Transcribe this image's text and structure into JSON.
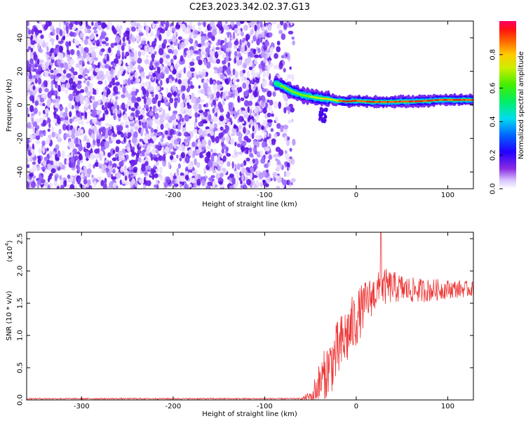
{
  "title": "C2E3.2023.342.02.37.G13",
  "chart_data": [
    {
      "type": "heatmap",
      "name": "spectrogram",
      "xlabel": "Height of straight line (km)",
      "ylabel": "Frequency (Hz)",
      "xlim": [
        -360,
        128
      ],
      "ylim": [
        -50,
        50
      ],
      "xticks": [
        -300,
        -200,
        -100,
        0,
        100
      ],
      "xtick_labels": [
        "-300",
        "-200",
        "-100",
        "0",
        "100"
      ],
      "yticks": [
        -40,
        -20,
        0,
        20,
        40
      ],
      "ytick_labels": [
        "-40",
        "-20",
        "0",
        "20",
        "40"
      ],
      "noise_region_x": [
        -360,
        -78
      ],
      "signal_ridge": {
        "x": [
          -88,
          -80,
          -70,
          -60,
          -50,
          -40,
          -30,
          -20,
          -10,
          0,
          10,
          20,
          30,
          40,
          50,
          60,
          70,
          80,
          90,
          100,
          110,
          120,
          128
        ],
        "freq_hz": [
          13,
          11,
          8,
          6,
          5,
          4,
          3.5,
          2.5,
          2,
          2.5,
          2,
          1.8,
          1.8,
          1.8,
          2,
          2,
          2.2,
          2.5,
          3,
          3,
          3,
          3,
          3
        ]
      },
      "colorbar": {
        "label": "Normalized spectral amplitude",
        "range": [
          0.0,
          1.0
        ],
        "ticks": [
          0.0,
          0.2,
          0.4,
          0.6,
          0.8
        ],
        "tick_labels": [
          "0.0",
          "0.2",
          "0.4",
          "0.6",
          "0.8"
        ]
      }
    },
    {
      "type": "line",
      "name": "snr",
      "xlabel": "Height of straight line (km)",
      "ylabel": "SNR (10 * v/v)",
      "yscale_label": "(x10",
      "yscale_exp": "4",
      "xlim": [
        -360,
        128
      ],
      "ylim": [
        0,
        2.6
      ],
      "xticks": [
        -300,
        -200,
        -100,
        0,
        100
      ],
      "xtick_labels": [
        "-300",
        "-200",
        "-100",
        "0",
        "100"
      ],
      "yticks": [
        0,
        0.5,
        1.0,
        1.5,
        2.0,
        2.5
      ],
      "ytick_labels": [
        "0.0",
        "0.5",
        "1.0",
        "1.5",
        "2.0",
        "2.5"
      ],
      "color": "#ee3333",
      "envelope": {
        "x": [
          -360,
          -60,
          -50,
          -40,
          -30,
          -20,
          -10,
          0,
          10,
          20,
          30,
          40,
          60,
          80,
          100,
          128
        ],
        "mean": [
          0.02,
          0.02,
          0.05,
          0.25,
          0.5,
          0.75,
          1.0,
          1.25,
          1.5,
          1.65,
          1.75,
          1.75,
          1.7,
          1.7,
          1.72,
          1.72
        ],
        "spread": [
          0.01,
          0.01,
          0.1,
          0.35,
          0.45,
          0.5,
          0.5,
          0.45,
          0.35,
          0.3,
          0.3,
          0.25,
          0.2,
          0.18,
          0.15,
          0.12
        ]
      },
      "peak": {
        "x": 27,
        "y": 2.6
      }
    }
  ]
}
